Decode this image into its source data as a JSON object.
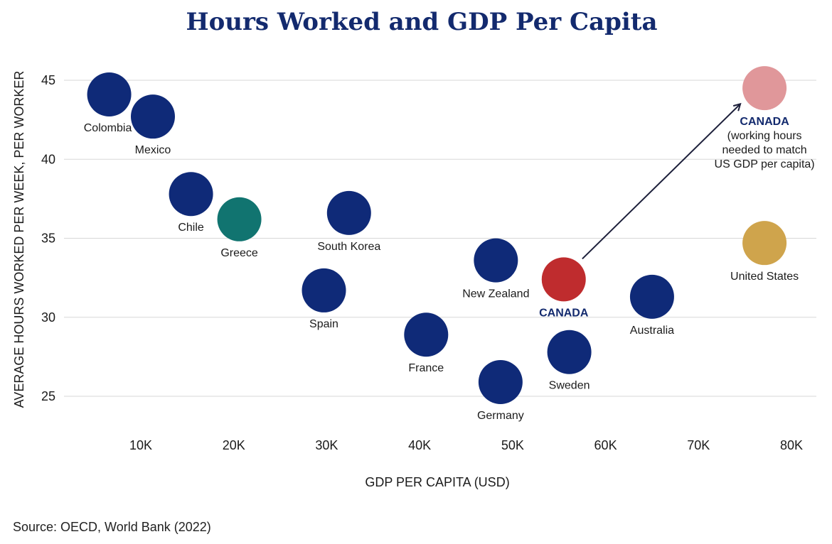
{
  "chart_data": {
    "type": "scatter",
    "title": "Hours Worked and GDP Per Capita",
    "xlabel": "GDP PER CAPITA (USD)",
    "ylabel": "AVERAGE HOURS WORKED PER WEEK, PER WORKER",
    "xlim": [
      1000,
      81500
    ],
    "ylim": [
      22,
      46
    ],
    "x_ticks": [
      10000,
      20000,
      30000,
      40000,
      50000,
      60000,
      70000,
      80000
    ],
    "x_tick_labels": [
      "10K",
      "20K",
      "30K",
      "40K",
      "50K",
      "60K",
      "70K",
      "80K"
    ],
    "y_ticks": [
      25,
      30,
      35,
      40,
      45
    ],
    "y_tick_labels": [
      "25",
      "30",
      "35",
      "40",
      "45"
    ],
    "grid": "horizontal",
    "points": [
      {
        "label": "Colombia",
        "x": 6600,
        "y": 44.1,
        "color": "#0f2a78",
        "label_pos": "below-left"
      },
      {
        "label": "Mexico",
        "x": 11300,
        "y": 42.7,
        "color": "#0f2a78",
        "label_pos": "below"
      },
      {
        "label": "Chile",
        "x": 15400,
        "y": 37.8,
        "color": "#0f2a78",
        "label_pos": "below"
      },
      {
        "label": "Greece",
        "x": 20600,
        "y": 36.2,
        "color": "#117470",
        "label_pos": "below"
      },
      {
        "label": "South Korea",
        "x": 32400,
        "y": 36.6,
        "color": "#0f2a78",
        "label_pos": "below"
      },
      {
        "label": "Spain",
        "x": 29700,
        "y": 31.7,
        "color": "#0f2a78",
        "label_pos": "below"
      },
      {
        "label": "New Zealand",
        "x": 48200,
        "y": 33.6,
        "color": "#0f2a78",
        "label_pos": "below"
      },
      {
        "label": "France",
        "x": 40700,
        "y": 28.9,
        "color": "#0f2a78",
        "label_pos": "below"
      },
      {
        "label": "Germany",
        "x": 48700,
        "y": 25.9,
        "color": "#0f2a78",
        "label_pos": "below"
      },
      {
        "label": "CANADA",
        "x": 55500,
        "y": 32.4,
        "color": "#bf2c2e",
        "label_pos": "below",
        "bold": true
      },
      {
        "label": "Sweden",
        "x": 56100,
        "y": 27.8,
        "color": "#0f2a78",
        "label_pos": "below"
      },
      {
        "label": "Australia",
        "x": 65000,
        "y": 31.3,
        "color": "#0f2a78",
        "label_pos": "below"
      },
      {
        "label": "United States",
        "x": 77100,
        "y": 34.7,
        "color": "#cfa44c",
        "label_pos": "below"
      },
      {
        "label": "CANADA",
        "x": 77100,
        "y": 44.5,
        "color": "#e0979a",
        "label_pos": "below",
        "bold": true,
        "sublabel": [
          "(working hours",
          "needed to match",
          "US GDP per capita)"
        ]
      }
    ],
    "annotations": [
      {
        "type": "arrow",
        "from": [
          57500,
          33.7
        ],
        "to": [
          74500,
          43.5
        ],
        "color": "#1c1f3a"
      }
    ]
  },
  "source": "Source: OECD, World Bank (2022)"
}
